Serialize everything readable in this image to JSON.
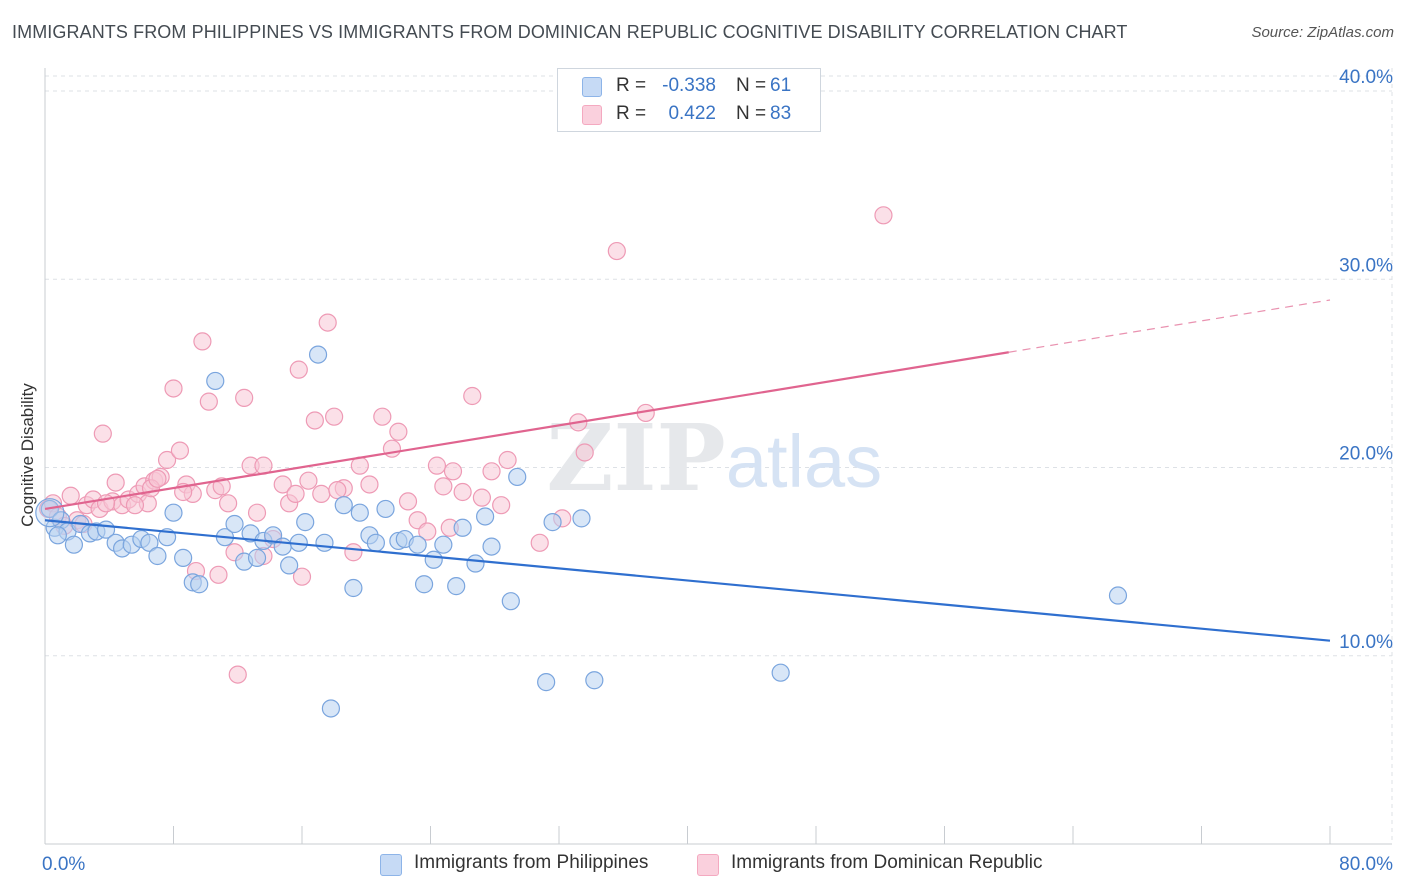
{
  "title": "IMMIGRANTS FROM PHILIPPINES VS IMMIGRANTS FROM DOMINICAN REPUBLIC COGNITIVE DISABILITY CORRELATION CHART",
  "source": "Source: ZipAtlas.com",
  "watermark": {
    "zip": "ZIP",
    "atlas": "atlas"
  },
  "legend_top": {
    "series1": {
      "r_label": "R =",
      "r_value": "-0.338",
      "n_label": "N =",
      "n_value": "61",
      "color": "#8db4e8"
    },
    "series2": {
      "r_label": "R =",
      "r_value": "0.422",
      "n_label": "N =",
      "n_value": "83",
      "color": "#f4a9c0"
    }
  },
  "colors": {
    "blue_fill": "#b8d1f1",
    "blue_stroke": "#7aa5de",
    "blue_line": "#2f6fcf",
    "pink_fill": "#f8c6d5",
    "pink_stroke": "#ee9ab5",
    "pink_line": "#e0648f",
    "tick_label": "#3a74c4",
    "grid": "#dde1e6"
  },
  "chart_data": {
    "type": "scatter",
    "title": "IMMIGRANTS FROM PHILIPPINES VS IMMIGRANTS FROM DOMINICAN REPUBLIC COGNITIVE DISABILITY CORRELATION CHART",
    "xlabel": "",
    "ylabel": "Cognitive Disability",
    "xlim": [
      0,
      80
    ],
    "ylim": [
      0,
      40.8
    ],
    "x_tick_labels": [
      "0.0%",
      "80.0%"
    ],
    "y_ticks": [
      10,
      20,
      30,
      40
    ],
    "y_tick_labels": [
      "10.0%",
      "20.0%",
      "30.0%",
      "40.0%"
    ],
    "grid": true,
    "legend_position": "top-center",
    "series": [
      {
        "name": "Immigrants from Philippines",
        "trend": {
          "x0": 0,
          "y0": 17.2,
          "x1": 80,
          "y1": 10.8,
          "dashed_from": null
        },
        "points": [
          [
            0.3,
            17.8
          ],
          [
            0.6,
            16.8
          ],
          [
            1.0,
            17.2
          ],
          [
            1.4,
            16.6
          ],
          [
            1.8,
            15.9
          ],
          [
            2.2,
            17.0
          ],
          [
            2.8,
            16.5
          ],
          [
            3.2,
            16.6
          ],
          [
            3.8,
            16.7
          ],
          [
            4.4,
            16.0
          ],
          [
            4.8,
            15.7
          ],
          [
            5.4,
            15.9
          ],
          [
            6.0,
            16.2
          ],
          [
            6.5,
            16.0
          ],
          [
            7.0,
            15.3
          ],
          [
            7.6,
            16.3
          ],
          [
            8.0,
            17.6
          ],
          [
            8.6,
            15.2
          ],
          [
            9.2,
            13.9
          ],
          [
            9.6,
            13.8
          ],
          [
            10.6,
            24.6
          ],
          [
            11.2,
            16.3
          ],
          [
            11.8,
            17.0
          ],
          [
            12.4,
            15.0
          ],
          [
            12.8,
            16.5
          ],
          [
            13.2,
            15.2
          ],
          [
            13.6,
            16.1
          ],
          [
            14.2,
            16.4
          ],
          [
            14.8,
            15.8
          ],
          [
            15.2,
            14.8
          ],
          [
            15.8,
            16.0
          ],
          [
            16.2,
            17.1
          ],
          [
            17.0,
            26.0
          ],
          [
            17.4,
            16.0
          ],
          [
            17.8,
            7.2
          ],
          [
            18.6,
            18.0
          ],
          [
            19.2,
            13.6
          ],
          [
            19.6,
            17.6
          ],
          [
            20.2,
            16.4
          ],
          [
            20.6,
            16.0
          ],
          [
            21.2,
            17.8
          ],
          [
            22.0,
            16.1
          ],
          [
            22.4,
            16.2
          ],
          [
            23.2,
            15.9
          ],
          [
            23.6,
            13.8
          ],
          [
            24.2,
            15.1
          ],
          [
            24.8,
            15.9
          ],
          [
            25.6,
            13.7
          ],
          [
            26.0,
            16.8
          ],
          [
            26.8,
            14.9
          ],
          [
            27.4,
            17.4
          ],
          [
            27.8,
            15.8
          ],
          [
            29.0,
            12.9
          ],
          [
            29.4,
            19.5
          ],
          [
            31.2,
            8.6
          ],
          [
            31.6,
            17.1
          ],
          [
            33.4,
            17.3
          ],
          [
            34.2,
            8.7
          ],
          [
            45.8,
            9.1
          ],
          [
            66.8,
            13.2
          ],
          [
            0.8,
            16.4
          ]
        ]
      },
      {
        "name": "Immigrants from Dominican Republic",
        "trend": {
          "x0": 0,
          "y0": 17.8,
          "x1": 80,
          "y1": 28.9,
          "dashed_from": 60
        },
        "points": [
          [
            0.2,
            17.8
          ],
          [
            0.5,
            18.1
          ],
          [
            0.8,
            17.4
          ],
          [
            1.2,
            16.9
          ],
          [
            1.6,
            18.5
          ],
          [
            2.0,
            17.2
          ],
          [
            2.6,
            18.0
          ],
          [
            3.0,
            18.3
          ],
          [
            3.4,
            17.8
          ],
          [
            3.6,
            21.8
          ],
          [
            4.2,
            18.2
          ],
          [
            4.4,
            19.2
          ],
          [
            4.8,
            18.0
          ],
          [
            5.2,
            18.3
          ],
          [
            5.8,
            18.6
          ],
          [
            6.2,
            19.0
          ],
          [
            6.4,
            18.1
          ],
          [
            6.8,
            19.3
          ],
          [
            7.2,
            19.5
          ],
          [
            7.6,
            20.4
          ],
          [
            8.0,
            24.2
          ],
          [
            8.4,
            20.9
          ],
          [
            8.8,
            19.1
          ],
          [
            9.2,
            18.6
          ],
          [
            9.8,
            26.7
          ],
          [
            10.2,
            23.5
          ],
          [
            10.6,
            18.8
          ],
          [
            11.0,
            19.0
          ],
          [
            11.4,
            18.1
          ],
          [
            11.8,
            15.5
          ],
          [
            12.4,
            23.7
          ],
          [
            12.8,
            20.1
          ],
          [
            13.2,
            17.6
          ],
          [
            13.6,
            20.1
          ],
          [
            14.2,
            16.2
          ],
          [
            14.8,
            19.1
          ],
          [
            15.2,
            18.1
          ],
          [
            15.8,
            25.2
          ],
          [
            16.4,
            19.3
          ],
          [
            16.8,
            22.5
          ],
          [
            17.2,
            18.6
          ],
          [
            17.6,
            27.7
          ],
          [
            18.0,
            22.7
          ],
          [
            18.6,
            18.9
          ],
          [
            19.2,
            15.5
          ],
          [
            19.6,
            20.1
          ],
          [
            20.2,
            19.1
          ],
          [
            21.0,
            22.7
          ],
          [
            21.6,
            21.0
          ],
          [
            22.0,
            21.9
          ],
          [
            22.6,
            18.2
          ],
          [
            23.2,
            17.2
          ],
          [
            23.8,
            16.6
          ],
          [
            24.4,
            20.1
          ],
          [
            24.8,
            19.0
          ],
          [
            25.4,
            19.8
          ],
          [
            26.0,
            18.7
          ],
          [
            26.6,
            23.8
          ],
          [
            27.2,
            18.4
          ],
          [
            27.8,
            19.8
          ],
          [
            28.4,
            18.0
          ],
          [
            28.8,
            20.4
          ],
          [
            30.8,
            16.0
          ],
          [
            32.2,
            17.3
          ],
          [
            33.2,
            22.4
          ],
          [
            33.6,
            20.8
          ],
          [
            35.6,
            31.5
          ],
          [
            37.4,
            22.9
          ],
          [
            52.2,
            33.4
          ],
          [
            8.6,
            18.7
          ],
          [
            9.4,
            14.5
          ],
          [
            10.8,
            14.3
          ],
          [
            13.6,
            15.3
          ],
          [
            16.0,
            14.2
          ],
          [
            12.0,
            9.0
          ],
          [
            5.6,
            18.0
          ],
          [
            6.6,
            18.9
          ],
          [
            7.0,
            19.4
          ],
          [
            2.4,
            17.0
          ],
          [
            3.8,
            18.1
          ],
          [
            25.2,
            16.8
          ],
          [
            15.6,
            18.6
          ],
          [
            18.2,
            18.8
          ]
        ]
      }
    ]
  },
  "bottom_legend": {
    "item1": {
      "label": "Immigrants from Philippines"
    },
    "item2": {
      "label": "Immigrants from Dominican Republic"
    }
  }
}
